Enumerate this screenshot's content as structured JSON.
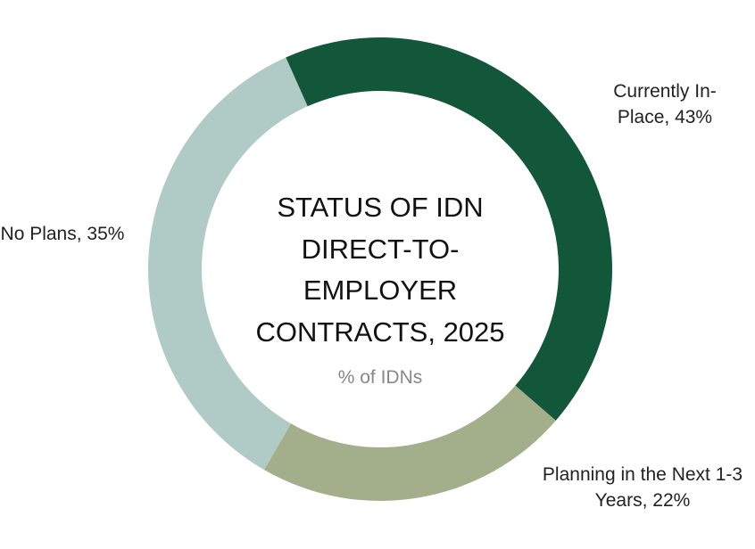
{
  "chart_data": {
    "type": "donut",
    "title": "STATUS OF IDN DIRECT-TO-EMPLOYER CONTRACTS, 2025",
    "subtitle": "% of IDNs",
    "values": [
      43,
      22,
      35
    ],
    "value_labels": [
      "Currently In-Place, 43%",
      "Planning in the Next 1-3 Years, 22%",
      "No Plans, 35%"
    ],
    "colors": [
      "#12573a",
      "#a3ae8a",
      "#b0cbc6"
    ]
  }
}
